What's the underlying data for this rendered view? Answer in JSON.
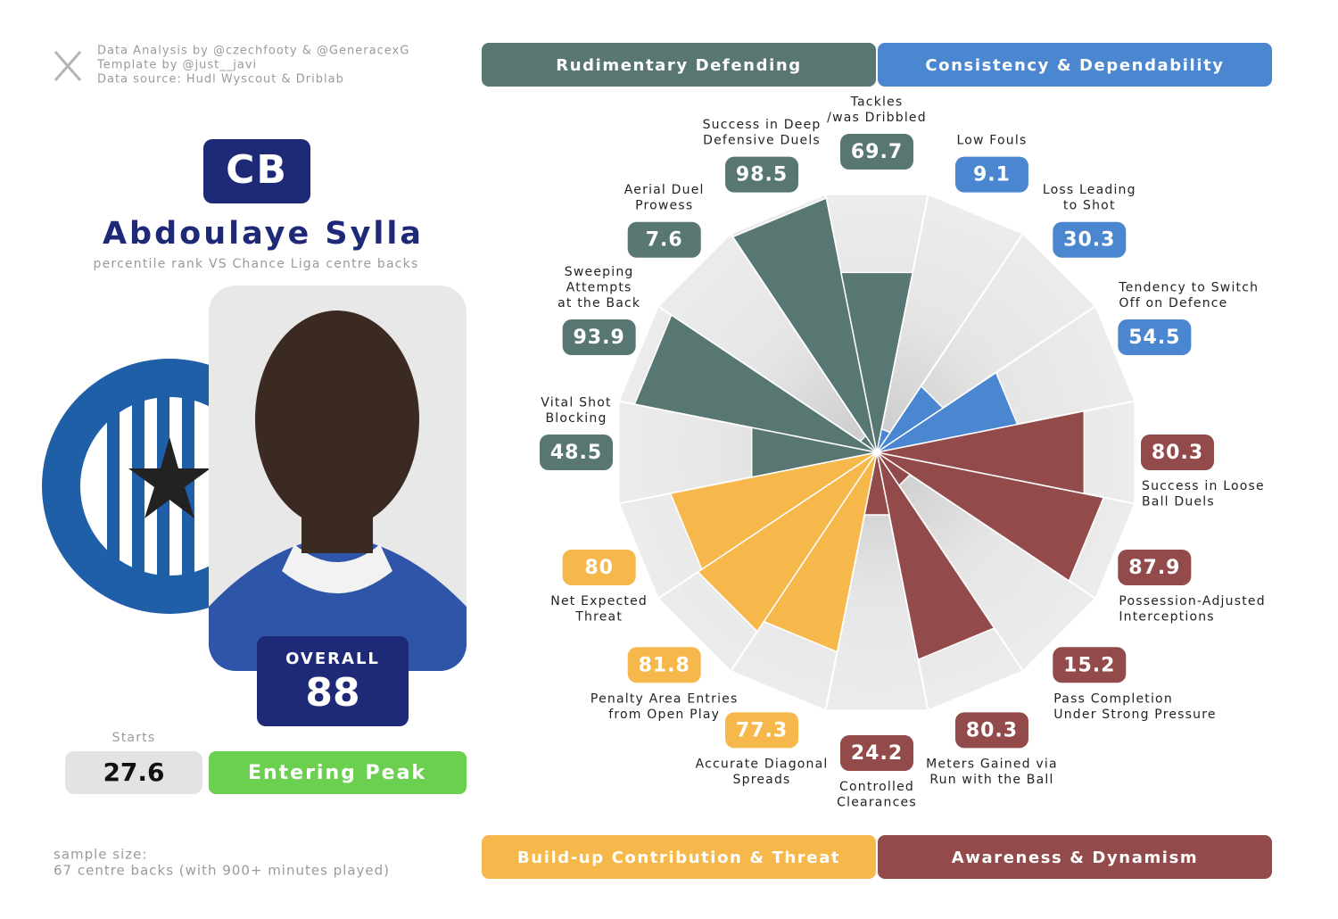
{
  "header": {
    "credits": [
      "Data Analysis by @czechfooty & @GeneracexG",
      "Template by @just__javi",
      "Data source: Hudl Wyscout & Driblab"
    ]
  },
  "player": {
    "position": "CB",
    "name": "Abdoulaye Sylla",
    "subtitle": "percentile rank VS Chance Liga centre backs",
    "overall_label": "OVERALL",
    "overall": 88,
    "starts_label": "Starts",
    "starts": 27.6,
    "status": "Entering Peak"
  },
  "footer": {
    "lines": [
      "sample size:",
      "67 centre backs (with 900+ minutes played)"
    ]
  },
  "chart_data": {
    "type": "polar_bar",
    "ylim": [
      0,
      100
    ],
    "series": [
      {
        "name": "Rudimentary Defending",
        "color": "#587672",
        "categories": [
          [
            "Vital Shot",
            "Blocking"
          ],
          [
            "Sweeping",
            "Attempts",
            "at the Back"
          ],
          [
            "Aerial Duel",
            "Prowess"
          ],
          [
            "Success in Deep",
            "Defensive Duels"
          ],
          [
            "Tackles",
            "/was Dribbled"
          ]
        ],
        "values": [
          48.5,
          93.9,
          7.6,
          98.5,
          69.7
        ]
      },
      {
        "name": "Consistency & Dependability",
        "color": "#4b87d1",
        "categories": [
          [
            "Low Fouls"
          ],
          [
            "Loss Leading",
            "to Shot"
          ],
          [
            "Tendency to Switch",
            "Off on Defence"
          ]
        ],
        "values": [
          9.1,
          30.3,
          54.5
        ]
      },
      {
        "name": "Awareness & Dynamism",
        "color": "#934a4b",
        "categories": [
          [
            "Success in Loose",
            "Ball Duels"
          ],
          [
            "Possession-Adjusted",
            "Interceptions"
          ],
          [
            "Pass Completion",
            "Under Strong Pressure"
          ],
          [
            "Meters Gained via",
            "Run with the Ball"
          ],
          [
            "Controlled",
            "Clearances"
          ]
        ],
        "values": [
          80.3,
          87.9,
          15.2,
          80.3,
          24.2
        ]
      },
      {
        "name": "Build-up Contribution & Threat",
        "color": "#f7b84b",
        "categories": [
          [
            "Accurate Diagonal",
            "Spreads"
          ],
          [
            "Penalty Area Entries",
            "from Open Play"
          ],
          [
            "Net Expected",
            "Threat"
          ]
        ],
        "values": [
          77.3,
          81.8,
          80
        ]
      }
    ]
  }
}
